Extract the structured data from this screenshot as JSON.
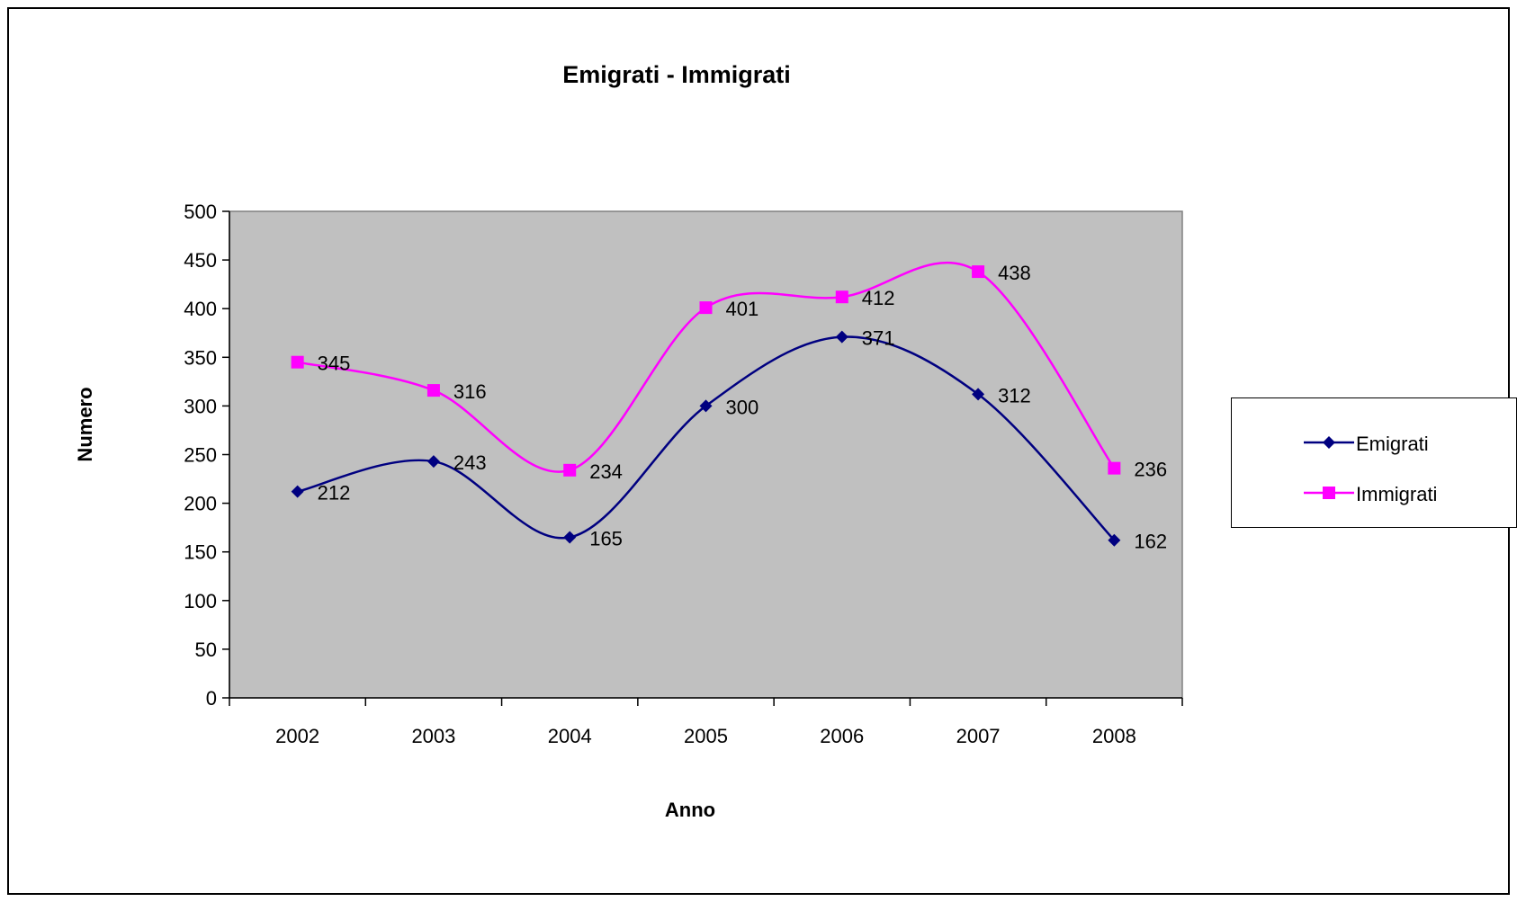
{
  "chart_data": {
    "type": "line",
    "title": "Emigrati - Immigrati",
    "xlabel": "Anno",
    "ylabel": "Numero",
    "categories": [
      "2002",
      "2003",
      "2004",
      "2005",
      "2006",
      "2007",
      "2008"
    ],
    "ylim": [
      0,
      500
    ],
    "yticks": [
      "0",
      "50",
      "100",
      "150",
      "200",
      "250",
      "300",
      "350",
      "400",
      "450",
      "500"
    ],
    "plot_background": "#c0c0c0",
    "grid": false,
    "smooth": true,
    "legend_position": "right",
    "series": [
      {
        "name": "Emigrati",
        "color": "#000080",
        "marker": "diamond",
        "values": [
          212,
          243,
          165,
          300,
          371,
          312,
          162
        ]
      },
      {
        "name": "Immigrati",
        "color": "#ff00ff",
        "marker": "square",
        "values": [
          345,
          316,
          234,
          401,
          412,
          438,
          236
        ]
      }
    ]
  }
}
